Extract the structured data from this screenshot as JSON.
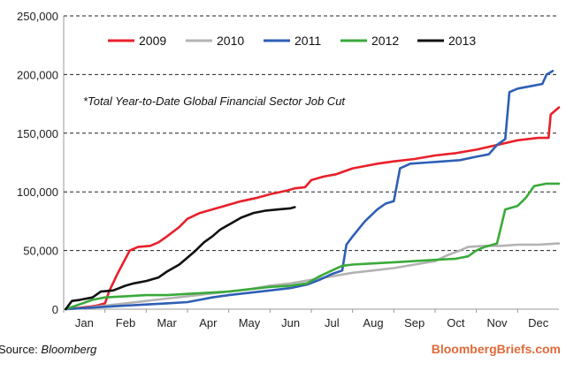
{
  "chart_data": {
    "type": "line",
    "title": "",
    "xlabel": "",
    "ylabel": "",
    "annotation": "*Total Year-to-Date Global Financial Sector Job Cut",
    "x_ticks": [
      "Jan",
      "Feb",
      "Mar",
      "Apr",
      "May",
      "Jun",
      "Jul",
      "Aug",
      "Sep",
      "Oct",
      "Nov",
      "Dec"
    ],
    "y_ticks": [
      "0",
      "50,000",
      "100,000",
      "150,000",
      "200,000",
      "250,000"
    ],
    "y_tick_values": [
      0,
      50000,
      100000,
      150000,
      200000,
      250000
    ],
    "xlim": [
      0,
      12
    ],
    "ylim": [
      0,
      250000
    ],
    "grid": "horizontal dashed",
    "legend_position": "top",
    "x_unit": "months since Jan 1",
    "series": [
      {
        "name": "2009",
        "color": "#e8202a",
        "points": [
          [
            0.05,
            0
          ],
          [
            0.35,
            1000
          ],
          [
            0.6,
            2000
          ],
          [
            0.8,
            3000
          ],
          [
            1.0,
            5000
          ],
          [
            1.1,
            15000
          ],
          [
            1.3,
            30000
          ],
          [
            1.45,
            40000
          ],
          [
            1.6,
            50000
          ],
          [
            1.8,
            53000
          ],
          [
            2.1,
            54000
          ],
          [
            2.3,
            57000
          ],
          [
            2.5,
            62000
          ],
          [
            2.8,
            70000
          ],
          [
            3.0,
            77000
          ],
          [
            3.3,
            82000
          ],
          [
            3.6,
            85000
          ],
          [
            4.0,
            89000
          ],
          [
            4.3,
            92000
          ],
          [
            4.7,
            95000
          ],
          [
            5.0,
            98000
          ],
          [
            5.4,
            101000
          ],
          [
            5.6,
            103000
          ],
          [
            5.85,
            104000
          ],
          [
            6.0,
            110000
          ],
          [
            6.3,
            113000
          ],
          [
            6.6,
            115000
          ],
          [
            7.0,
            120000
          ],
          [
            7.3,
            122000
          ],
          [
            7.6,
            124000
          ],
          [
            8.0,
            126000
          ],
          [
            8.5,
            128000
          ],
          [
            9.0,
            131000
          ],
          [
            9.5,
            133000
          ],
          [
            10.0,
            136000
          ],
          [
            10.5,
            140000
          ],
          [
            11.0,
            144000
          ],
          [
            11.5,
            146000
          ],
          [
            11.75,
            146000
          ],
          [
            11.8,
            166000
          ],
          [
            12.0,
            172000
          ]
        ]
      },
      {
        "name": "2010",
        "color": "#b3b3b3",
        "points": [
          [
            0.05,
            0
          ],
          [
            0.5,
            1000
          ],
          [
            1.0,
            3000
          ],
          [
            1.5,
            5000
          ],
          [
            2.0,
            7000
          ],
          [
            2.5,
            9000
          ],
          [
            3.0,
            11000
          ],
          [
            3.5,
            13000
          ],
          [
            4.0,
            15000
          ],
          [
            4.5,
            17000
          ],
          [
            5.0,
            20000
          ],
          [
            5.5,
            22000
          ],
          [
            6.0,
            25000
          ],
          [
            6.5,
            28000
          ],
          [
            7.0,
            31000
          ],
          [
            7.5,
            33000
          ],
          [
            8.0,
            35000
          ],
          [
            8.5,
            38000
          ],
          [
            9.0,
            41000
          ],
          [
            9.3,
            46000
          ],
          [
            9.6,
            50000
          ],
          [
            9.8,
            53000
          ],
          [
            10.2,
            54000
          ],
          [
            10.6,
            54000
          ],
          [
            11.0,
            55000
          ],
          [
            11.5,
            55000
          ],
          [
            12.0,
            56000
          ]
        ]
      },
      {
        "name": "2011",
        "color": "#2e5fb5",
        "points": [
          [
            0.05,
            0
          ],
          [
            0.5,
            1000
          ],
          [
            1.0,
            2000
          ],
          [
            1.5,
            3000
          ],
          [
            2.0,
            4000
          ],
          [
            2.5,
            5000
          ],
          [
            3.0,
            6000
          ],
          [
            3.3,
            8000
          ],
          [
            3.6,
            10000
          ],
          [
            4.0,
            12000
          ],
          [
            4.5,
            14000
          ],
          [
            5.0,
            16000
          ],
          [
            5.5,
            18000
          ],
          [
            5.9,
            21000
          ],
          [
            6.2,
            25000
          ],
          [
            6.5,
            30000
          ],
          [
            6.75,
            33000
          ],
          [
            6.85,
            55000
          ],
          [
            7.0,
            62000
          ],
          [
            7.3,
            75000
          ],
          [
            7.6,
            85000
          ],
          [
            7.8,
            90000
          ],
          [
            8.0,
            92000
          ],
          [
            8.15,
            120000
          ],
          [
            8.4,
            124000
          ],
          [
            8.8,
            125000
          ],
          [
            9.2,
            126000
          ],
          [
            9.6,
            127000
          ],
          [
            10.0,
            130000
          ],
          [
            10.3,
            132000
          ],
          [
            10.5,
            140000
          ],
          [
            10.7,
            145000
          ],
          [
            10.8,
            185000
          ],
          [
            11.0,
            188000
          ],
          [
            11.3,
            190000
          ],
          [
            11.6,
            192000
          ],
          [
            11.7,
            200000
          ],
          [
            11.85,
            203000
          ]
        ]
      },
      {
        "name": "2012",
        "color": "#3aaa3a",
        "points": [
          [
            0.05,
            0
          ],
          [
            0.3,
            3000
          ],
          [
            0.7,
            8000
          ],
          [
            1.0,
            10000
          ],
          [
            1.5,
            11000
          ],
          [
            2.0,
            12000
          ],
          [
            2.5,
            12000
          ],
          [
            3.0,
            13000
          ],
          [
            3.5,
            14000
          ],
          [
            4.0,
            15000
          ],
          [
            4.5,
            17000
          ],
          [
            5.0,
            19000
          ],
          [
            5.5,
            20000
          ],
          [
            5.9,
            22000
          ],
          [
            6.2,
            28000
          ],
          [
            6.5,
            33000
          ],
          [
            6.75,
            37000
          ],
          [
            7.0,
            38000
          ],
          [
            7.5,
            39000
          ],
          [
            8.0,
            40000
          ],
          [
            8.5,
            41000
          ],
          [
            9.0,
            42000
          ],
          [
            9.5,
            43000
          ],
          [
            9.8,
            45000
          ],
          [
            10.0,
            50000
          ],
          [
            10.2,
            53000
          ],
          [
            10.5,
            56000
          ],
          [
            10.7,
            85000
          ],
          [
            11.0,
            88000
          ],
          [
            11.2,
            95000
          ],
          [
            11.4,
            105000
          ],
          [
            11.7,
            107000
          ],
          [
            12.0,
            107000
          ]
        ]
      },
      {
        "name": "2013",
        "color": "#111111",
        "points": [
          [
            0.05,
            0
          ],
          [
            0.2,
            7000
          ],
          [
            0.4,
            8000
          ],
          [
            0.7,
            10000
          ],
          [
            0.9,
            15000
          ],
          [
            1.2,
            16000
          ],
          [
            1.5,
            20000
          ],
          [
            1.7,
            22000
          ],
          [
            2.0,
            24000
          ],
          [
            2.3,
            27000
          ],
          [
            2.5,
            32000
          ],
          [
            2.8,
            38000
          ],
          [
            3.0,
            44000
          ],
          [
            3.2,
            50000
          ],
          [
            3.4,
            57000
          ],
          [
            3.6,
            62000
          ],
          [
            3.8,
            68000
          ],
          [
            4.0,
            72000
          ],
          [
            4.3,
            78000
          ],
          [
            4.6,
            82000
          ],
          [
            4.9,
            84000
          ],
          [
            5.2,
            85000
          ],
          [
            5.5,
            86000
          ],
          [
            5.6,
            87000
          ]
        ]
      }
    ],
    "source": {
      "label": "Source: ",
      "name": "Bloomberg"
    },
    "brand": "BloombergBriefs.com"
  }
}
